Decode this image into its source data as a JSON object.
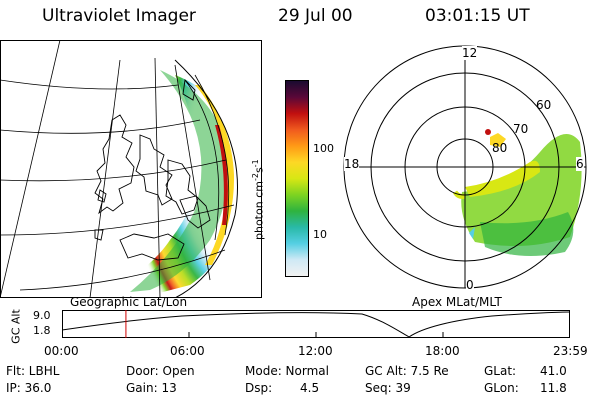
{
  "header": {
    "instrument": "Ultraviolet Imager",
    "date": "29 Jul 00",
    "time": "03:01:15 UT"
  },
  "left_panel": {
    "caption": "Geographic Lat/Lon"
  },
  "colorbar": {
    "unit_label": "photon cm-2s-1",
    "unit_base": "photon cm",
    "unit_exp1": "-2",
    "unit_mid": "s",
    "unit_exp2": "-1",
    "tick_100": "100",
    "tick_10": "10",
    "colors": [
      "#f2f2f2",
      "#cfe9f5",
      "#55cfe3",
      "#29b9a7",
      "#2fb33f",
      "#7ed321",
      "#d8e714",
      "#fdd825",
      "#ff9a16",
      "#f05a1e",
      "#c10f0f",
      "#5a0838",
      "#1a0a30"
    ]
  },
  "right_panel": {
    "caption": "Apex MLat/MLT",
    "mlt_labels": {
      "top": "12",
      "left": "18",
      "right": "6",
      "bottom": "0"
    },
    "mlat_labels": [
      "60",
      "70",
      "80"
    ]
  },
  "altitude_plot": {
    "ylabel": "GC Alt",
    "yticks": [
      "9.0",
      "1.8"
    ],
    "xticks": [
      "00:00",
      "06:00",
      "12:00",
      "18:00",
      "23:59"
    ],
    "current_time_marker_hours": 3.02
  },
  "status": {
    "flt": "Flt: LBHL",
    "ip": "IP: 36.0",
    "door": "Door: Open",
    "gain": "Gain: 13",
    "mode": "Mode: Normal",
    "dsp_label": "Dsp:",
    "dsp_value": "4.5",
    "gc_alt": "GC Alt: 7.5 Re",
    "seq": "Seq: 39",
    "glat_label": "GLat:",
    "glat_value": "41.0",
    "glon_label": "GLon:",
    "glon_value": "11.8"
  }
}
